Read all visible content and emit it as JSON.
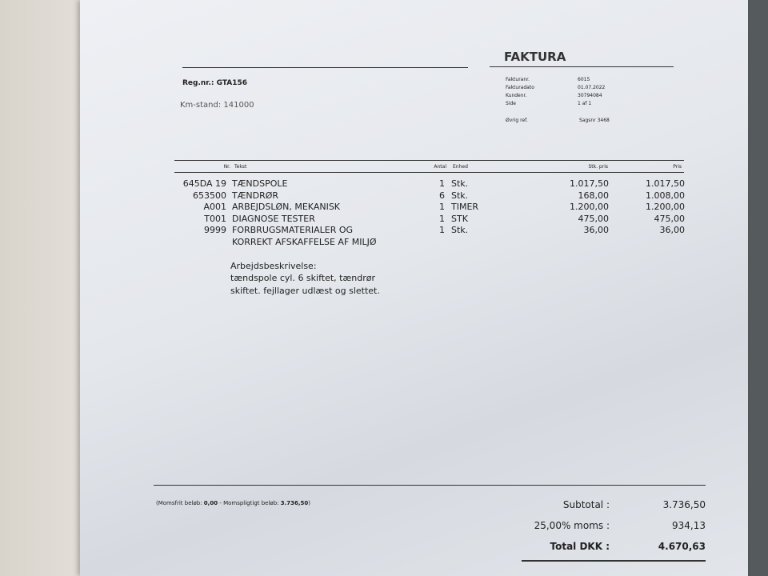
{
  "header": {
    "title": "FAKTURA",
    "reg_nr": "Reg.nr.: GTA156",
    "km_stand": "Km-stand: 141000"
  },
  "info": [
    {
      "label": "Fakturanr.",
      "value": "6015"
    },
    {
      "label": "Fakturadato",
      "value": "01.07.2022"
    },
    {
      "label": "Kundenr.",
      "value": "30794084"
    },
    {
      "label": "Side",
      "value": "1 af 1"
    }
  ],
  "reference": {
    "label": "Øvrig ref.",
    "value": "Sagsnr 3468"
  },
  "table": {
    "columns": [
      "Nr.",
      "Tekst",
      "Antal",
      "Enhed",
      "Stk. pris",
      "Pris"
    ],
    "rows": [
      [
        "645DA 19",
        "TÆNDSPOLE",
        "1",
        "Stk.",
        "1.017,50",
        "1.017,50"
      ],
      [
        "653500",
        "TÆNDRØR",
        "6",
        "Stk.",
        "168,00",
        "1.008,00"
      ],
      [
        "A001",
        "ARBEJDSLØN, MEKANISK",
        "1",
        "TIMER",
        "1.200,00",
        "1.200,00"
      ],
      [
        "T001",
        "DIAGNOSE TESTER",
        "1",
        "STK",
        "475,00",
        "475,00"
      ],
      [
        "9999",
        "FORBRUGSMATERIALER OG\nKORREKT AFSKAFFELSE AF MILJØ",
        "1",
        "Stk.",
        "36,00",
        "36,00"
      ]
    ]
  },
  "description": {
    "heading": "Arbejdsbeskrivelse:",
    "lines": [
      "tændspole cyl. 6 skiftet, tændrør",
      "skiftet. fejllager udlæst og slettet."
    ]
  },
  "footer": {
    "vat_free_label": "(Momsfrit beløb:",
    "vat_free": "0,00",
    "vat_liable_label": "- Momspligtigt beløb:",
    "vat_liable": "3.736,50",
    "close": ")"
  },
  "totals": [
    {
      "label": "Subtotal :",
      "value": "3.736,50"
    },
    {
      "label": "25,00% moms :",
      "value": "934,13"
    },
    {
      "label": "Total DKK :",
      "value": "4.670,63"
    }
  ]
}
